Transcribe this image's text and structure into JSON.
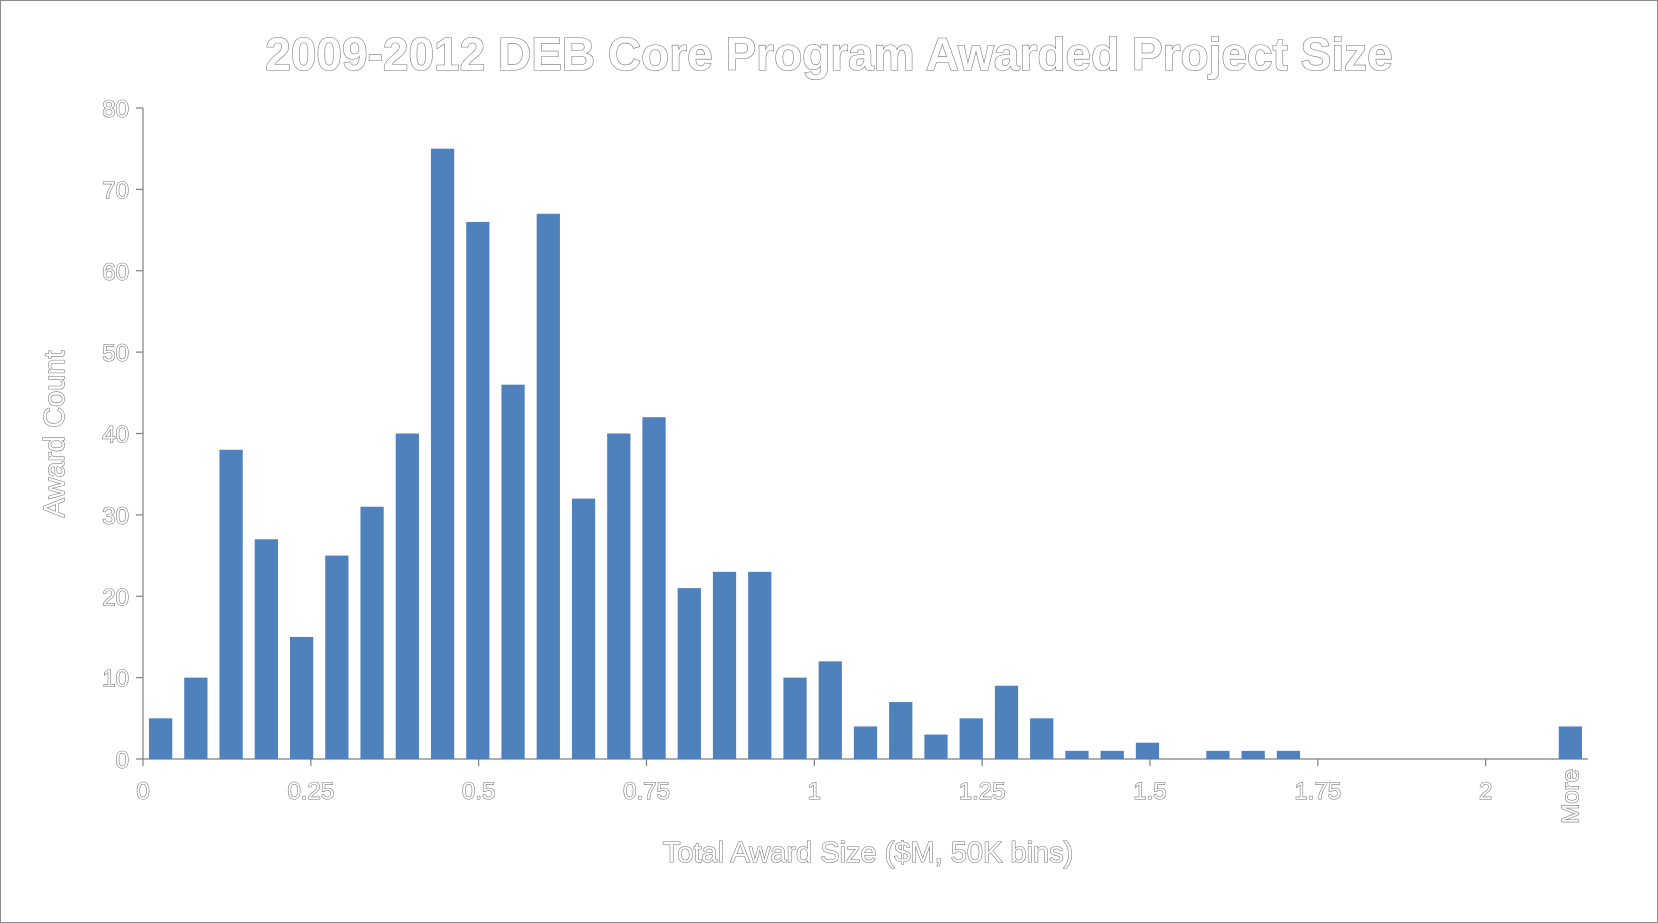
{
  "chart_data": {
    "type": "bar",
    "title": "2009-2012 DEB Core Program Awarded Project Size",
    "xlabel": "Total Award Size ($M, 50K bins)",
    "ylabel": "Award Count",
    "ylim": [
      0,
      80
    ],
    "yticks": [
      0,
      10,
      20,
      30,
      40,
      50,
      60,
      70,
      80
    ],
    "xlim": [
      0,
      2.1
    ],
    "xticks": [
      "0",
      "0.25",
      "0.5",
      "0.75",
      "1",
      "1.25",
      "1.5",
      "1.75",
      "2"
    ],
    "x_extra_tick": "More",
    "bar_color": "#4f81bd",
    "categories": [
      0.05,
      0.1,
      0.15,
      0.2,
      0.25,
      0.3,
      0.35,
      0.4,
      0.45,
      0.5,
      0.55,
      0.6,
      0.65,
      0.7,
      0.75,
      0.8,
      0.85,
      0.9,
      0.95,
      1.0,
      1.05,
      1.1,
      1.15,
      1.2,
      1.25,
      1.3,
      1.35,
      1.4,
      1.45,
      1.5,
      1.55,
      1.6,
      1.65,
      1.7,
      1.75,
      1.8,
      1.85,
      1.9,
      1.95,
      2.0,
      "More"
    ],
    "values": [
      5,
      10,
      38,
      27,
      15,
      25,
      31,
      40,
      75,
      66,
      46,
      67,
      32,
      40,
      42,
      21,
      23,
      23,
      10,
      12,
      4,
      7,
      3,
      5,
      9,
      5,
      1,
      1,
      2,
      0,
      1,
      1,
      1,
      0,
      0,
      0,
      0,
      0,
      0,
      0,
      4
    ],
    "grid": false,
    "legend": "none"
  }
}
